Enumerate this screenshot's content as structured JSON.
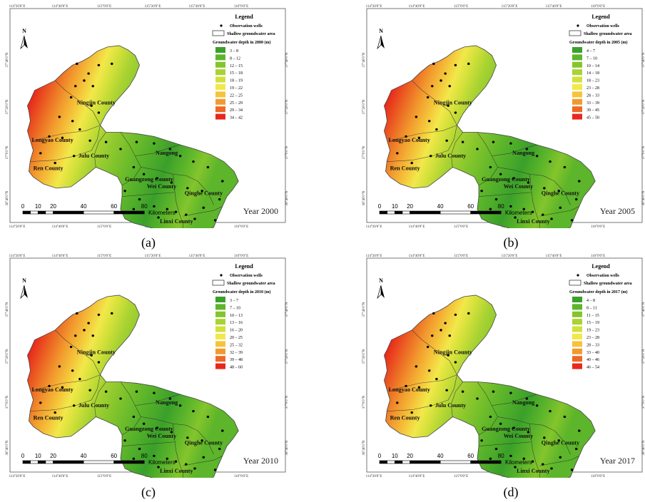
{
  "panels": [
    {
      "id": "a",
      "caption": "(a)",
      "year_label": "Year 2000",
      "legend_title": "Legend",
      "obs_label": "Observation wells",
      "area_label": "Shallow groundwater area",
      "depth_title": "Groundwater depth in 2000 (m)",
      "classes": [
        "3 – 8",
        "8 – 12",
        "12 – 15",
        "15 – 18",
        "18 – 19",
        "19 – 22",
        "22 – 25",
        "25 – 29",
        "29 – 34",
        "34 – 42"
      ]
    },
    {
      "id": "b",
      "caption": "(b)",
      "year_label": "Year 2005",
      "legend_title": "Legend",
      "obs_label": "Observation wells",
      "area_label": "Shallow groundwater area",
      "depth_title": "Groundwater depth in 2005 (m)",
      "classes": [
        "4 – 7",
        "7 – 10",
        "10 – 14",
        "14 – 18",
        "18 – 23",
        "23 – 28",
        "28 – 33",
        "33 – 39",
        "39 – 45",
        "45 – 50"
      ]
    },
    {
      "id": "c",
      "caption": "(c)",
      "year_label": "Year 2010",
      "legend_title": "Legend",
      "obs_label": "Observation wells",
      "area_label": "Shallow groundwater area",
      "depth_title": "Groundwater depth in 2010 (m)",
      "classes": [
        "3 – 7",
        "7 – 10",
        "10 – 13",
        "13 – 16",
        "16 – 20",
        "20 – 25",
        "25 – 32",
        "32 – 39",
        "39 – 48",
        "48 – 60"
      ]
    },
    {
      "id": "d",
      "caption": "(d)",
      "year_label": "Year 2017",
      "legend_title": "Legend",
      "obs_label": "Observation wells",
      "area_label": "Shallow groundwater area",
      "depth_title": "Groundwater depth in 2017 (m)",
      "classes": [
        "4 – 8",
        "8 – 11",
        "11 – 15",
        "15 – 19",
        "19 – 23",
        "23 – 28",
        "28 – 33",
        "33 – 40",
        "40 – 46",
        "46 – 54"
      ]
    }
  ],
  "class_colors": [
    "#3aa02a",
    "#5cb52a",
    "#84c52c",
    "#a8d332",
    "#d2e03a",
    "#f2e84a",
    "#f5c43a",
    "#f29a2e",
    "#ec6a24",
    "#e8281c"
  ],
  "counties": [
    "Ningjin County",
    "Longyao County",
    "Julu County",
    "Nangong",
    "Ren County",
    "Guangzong County",
    "Wei County",
    "Qinghe County",
    "Linxi County"
  ],
  "lon_ticks": [
    "114°20'0\"E",
    "114°40'0\"E",
    "115°0'0\"E",
    "115°20'0\"E",
    "115°40'0\"E",
    "116°0'0\"E"
  ],
  "lat_ticks": [
    "37°40'0\"N",
    "37°20'0\"N",
    "37°0'0\"N",
    "36°40'0\"N"
  ],
  "north_label": "N",
  "scale": {
    "ticks": [
      "0",
      "10",
      "20",
      "40",
      "60",
      "80"
    ],
    "unit": "Kilometers"
  }
}
